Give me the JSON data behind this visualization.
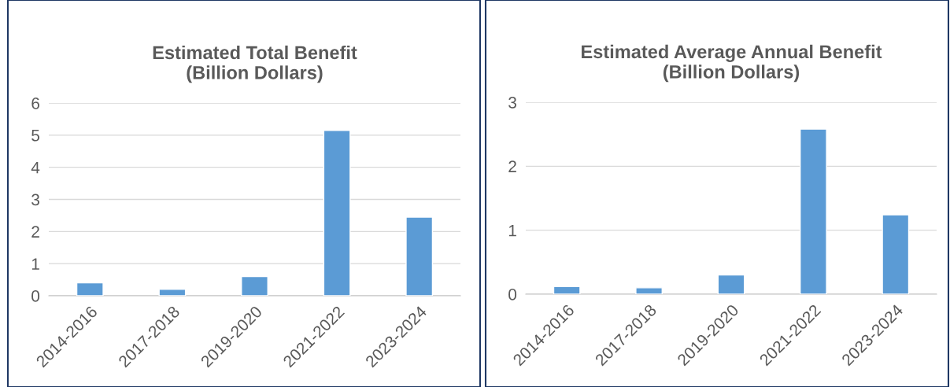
{
  "chart_data": [
    {
      "type": "bar",
      "title": "Estimated Total Benefit\n(Billion Dollars)",
      "categories": [
        "2014-2016",
        "2017-2018",
        "2019-2020",
        "2021-2022",
        "2023-2024"
      ],
      "values": [
        0.4,
        0.2,
        0.6,
        5.15,
        2.45
      ],
      "color": "#5b9bd5",
      "ylim": [
        0,
        6
      ],
      "yticks": [
        0,
        1,
        2,
        3,
        4,
        5,
        6
      ],
      "grid": "y"
    },
    {
      "type": "bar",
      "title": "Estimated Average Annual Benefit\n(Billion Dollars)",
      "categories": [
        "2014-2016",
        "2017-2018",
        "2019-2020",
        "2021-2022",
        "2023-2024"
      ],
      "values": [
        0.12,
        0.1,
        0.3,
        2.58,
        1.24
      ],
      "color": "#5b9bd5",
      "ylim": [
        0,
        3
      ],
      "yticks": [
        0,
        1,
        2,
        3
      ],
      "grid": "y"
    }
  ]
}
